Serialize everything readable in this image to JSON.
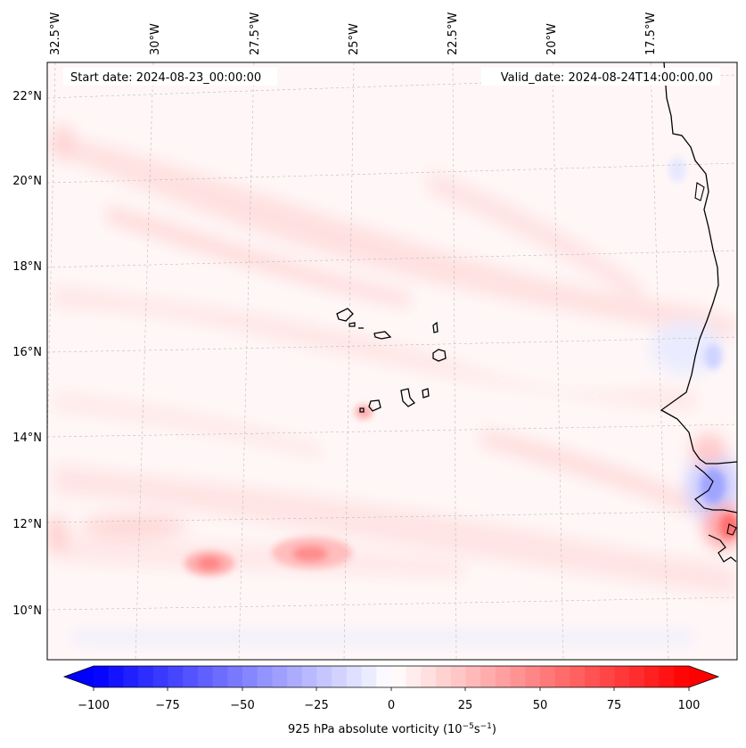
{
  "header": {
    "start_date": "Start date: 2024-08-23_00:00:00",
    "valid_date": "Valid_date: 2024-08-24T14:00:00.00"
  },
  "axes": {
    "lon_ticks": [
      "32.5°W",
      "30°W",
      "27.5°W",
      "25°W",
      "22.5°W",
      "20°W",
      "17.5°W"
    ],
    "lat_ticks": [
      "22°N",
      "20°N",
      "18°N",
      "16°N",
      "14°N",
      "12°N",
      "10°N"
    ]
  },
  "colorbar": {
    "ticks": [
      "−100",
      "−75",
      "−50",
      "−25",
      "0",
      "25",
      "50",
      "75",
      "100"
    ],
    "label": "925 hPa absolute vorticity (10",
    "label_exp1": "−5",
    "label_mid": "s",
    "label_exp2": "−1",
    "label_end": ")",
    "min_color": "#0000ff",
    "mid_color": "#ffffff",
    "max_color": "#ff0000"
  }
}
